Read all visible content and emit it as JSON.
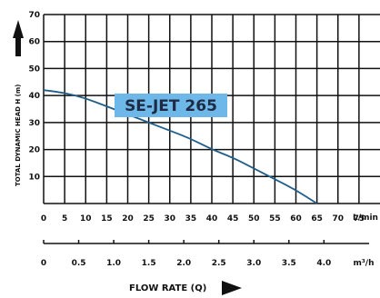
{
  "chart_data": {
    "type": "line",
    "title": "",
    "ylabel": "TOTAL DYNAMIC HEAD H (m)",
    "xlabel": "FLOW RATE (Q)",
    "ylim": [
      0,
      70
    ],
    "yticks": [
      10,
      20,
      30,
      40,
      50,
      60,
      70
    ],
    "xlim_lmin": [
      0,
      80
    ],
    "xticks_lmin": [
      0,
      5,
      10,
      15,
      20,
      25,
      30,
      35,
      40,
      45,
      50,
      55,
      60,
      65,
      70,
      75
    ],
    "xunit_lmin": "L/min",
    "xticks_m3h": [
      "0",
      "0.5",
      "1.0",
      "1.5",
      "2.0",
      "2.5",
      "3.0",
      "3.5",
      "4.0"
    ],
    "xunit_m3h": "m³/h",
    "grid": true,
    "series": [
      {
        "name": "SE-JET 265",
        "x": [
          0,
          5,
          10,
          15,
          20,
          25,
          30,
          35,
          40,
          45,
          50,
          55,
          60,
          65
        ],
        "y": [
          42,
          41,
          39,
          36,
          33,
          30,
          27,
          24,
          20,
          17,
          13,
          9,
          5,
          0
        ]
      }
    ]
  },
  "colors": {
    "curve": "#1f5e8a",
    "callout_bg": "#6db8e8",
    "grid": "#111111"
  }
}
